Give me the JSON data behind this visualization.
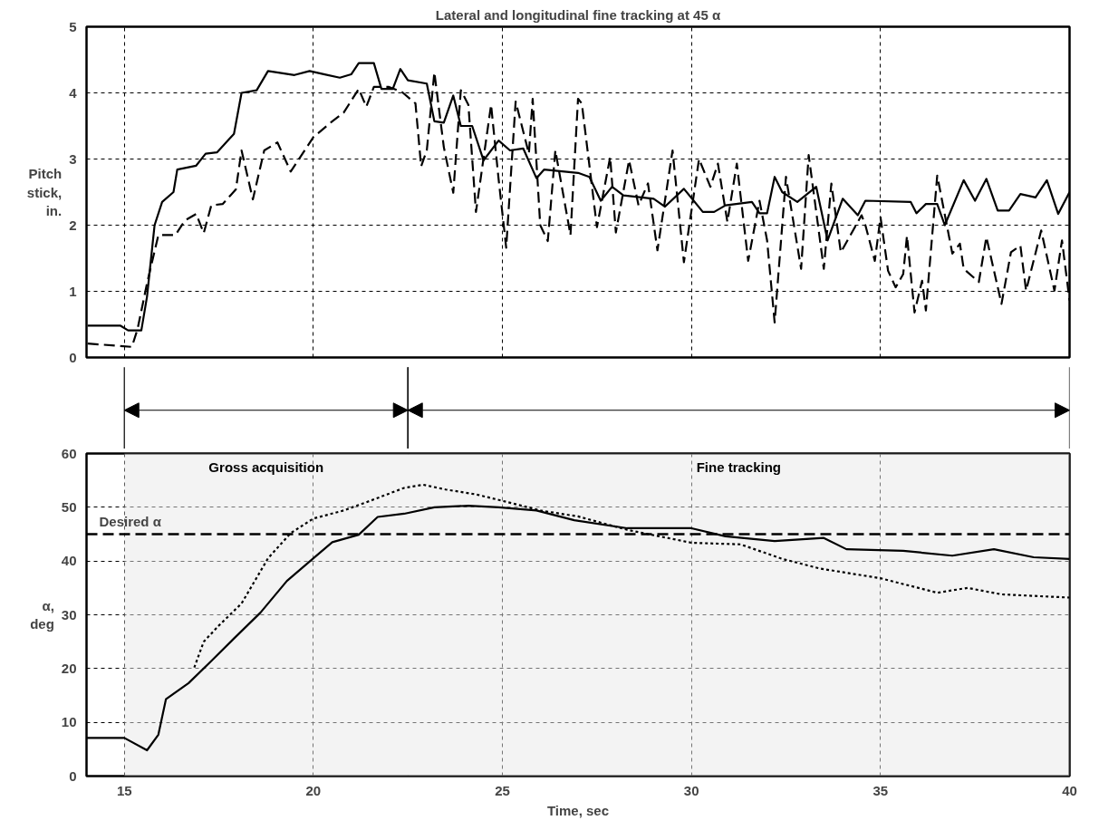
{
  "chart_data": [
    {
      "type": "line",
      "title": "Lateral and longitudinal fine tracking at 45 α",
      "ylabel": "Pitch stick, in.",
      "xlim": [
        14,
        40
      ],
      "ylim": [
        0,
        5
      ],
      "xticks": [
        15,
        20,
        25,
        30,
        35,
        40
      ],
      "yticks": [
        0,
        1,
        2,
        3,
        4,
        5
      ],
      "tick_labels": "y",
      "grid": true,
      "marker": "none",
      "series": [
        {
          "color": "#000000",
          "line_style": "solid",
          "x": [
            14.03,
            14.9,
            15.1,
            15.45,
            15.6,
            15.8,
            16.0,
            16.3,
            16.4,
            16.9,
            17.15,
            17.45,
            17.9,
            18.1,
            18.5,
            18.8,
            19.5,
            19.9,
            20.3,
            20.7,
            21.0,
            21.2,
            21.6,
            21.8,
            22.1,
            22.3,
            22.5,
            23.0,
            23.2,
            23.45,
            23.7,
            23.9,
            24.2,
            24.5,
            24.9,
            25.2,
            25.55,
            25.9,
            26.1,
            27.0,
            27.3,
            27.6,
            27.9,
            28.2,
            29.0,
            29.3,
            29.8,
            30.3,
            30.6,
            30.9,
            31.6,
            31.8,
            32.0,
            32.2,
            32.4,
            32.8,
            33.3,
            33.6,
            34.0,
            34.4,
            34.6,
            35.8,
            35.95,
            36.2,
            36.5,
            36.7,
            37.2,
            37.5,
            37.8,
            38.1,
            38.4,
            38.7,
            39.1,
            39.4,
            39.7,
            40.0
          ],
          "values": [
            0.48,
            0.48,
            0.41,
            0.41,
            0.92,
            2.0,
            2.35,
            2.5,
            2.84,
            2.9,
            3.08,
            3.1,
            3.38,
            4.0,
            4.04,
            4.33,
            4.27,
            4.33,
            4.28,
            4.23,
            4.28,
            4.45,
            4.45,
            4.06,
            4.06,
            4.36,
            4.19,
            4.14,
            3.57,
            3.55,
            3.96,
            3.5,
            3.5,
            2.98,
            3.28,
            3.13,
            3.16,
            2.71,
            2.84,
            2.79,
            2.73,
            2.37,
            2.58,
            2.45,
            2.4,
            2.28,
            2.55,
            2.2,
            2.2,
            2.3,
            2.35,
            2.18,
            2.18,
            2.73,
            2.5,
            2.35,
            2.58,
            1.77,
            2.4,
            2.15,
            2.37,
            2.35,
            2.18,
            2.32,
            2.32,
            2.0,
            2.68,
            2.37,
            2.7,
            2.22,
            2.22,
            2.47,
            2.42,
            2.68,
            2.17,
            2.5
          ]
        },
        {
          "color": "#000000",
          "line_style": "dashed",
          "x": [
            14.03,
            15.2,
            15.35,
            15.6,
            15.9,
            16.35,
            16.6,
            16.9,
            17.1,
            17.3,
            17.6,
            17.95,
            18.1,
            18.4,
            18.7,
            19.05,
            19.4,
            20.0,
            20.5,
            20.8,
            21.2,
            21.4,
            21.6,
            22.0,
            22.35,
            22.7,
            22.85,
            23.0,
            23.2,
            23.45,
            23.7,
            23.9,
            24.1,
            24.3,
            24.7,
            24.9,
            25.1,
            25.35,
            25.7,
            25.8,
            26.0,
            26.2,
            26.4,
            26.8,
            27.0,
            27.1,
            27.5,
            27.85,
            28.0,
            28.35,
            28.6,
            28.85,
            29.1,
            29.5,
            29.8,
            30.2,
            30.5,
            30.7,
            30.95,
            31.2,
            31.5,
            31.8,
            32.0,
            32.2,
            32.5,
            32.9,
            33.1,
            33.5,
            33.7,
            33.95,
            34.5,
            34.6,
            34.85,
            35.0,
            35.2,
            35.4,
            35.6,
            35.7,
            35.9,
            36.1,
            36.2,
            36.5,
            36.9,
            37.1,
            37.2,
            37.6,
            37.8,
            38.2,
            38.45,
            38.7,
            38.85,
            39.25,
            39.6,
            39.8,
            40.0
          ],
          "values": [
            0.21,
            0.16,
            0.43,
            1.12,
            1.85,
            1.85,
            2.07,
            2.17,
            1.88,
            2.3,
            2.32,
            2.54,
            3.13,
            2.39,
            3.13,
            3.25,
            2.81,
            3.33,
            3.57,
            3.7,
            4.06,
            3.79,
            4.09,
            4.09,
            4.01,
            3.84,
            2.89,
            3.13,
            4.31,
            3.18,
            2.49,
            4.04,
            3.82,
            2.2,
            3.82,
            2.69,
            1.66,
            3.87,
            3.08,
            3.91,
            2.0,
            1.76,
            3.13,
            1.85,
            3.91,
            3.84,
            1.97,
            3.03,
            1.89,
            2.98,
            2.3,
            2.63,
            1.62,
            3.13,
            1.44,
            3.0,
            2.58,
            2.93,
            2.05,
            2.93,
            1.46,
            2.37,
            1.77,
            0.53,
            2.73,
            1.34,
            3.06,
            1.34,
            2.63,
            1.59,
            2.15,
            2.0,
            1.46,
            2.12,
            1.31,
            1.06,
            1.26,
            1.84,
            0.68,
            1.16,
            0.71,
            2.75,
            1.57,
            1.72,
            1.34,
            1.14,
            1.82,
            0.81,
            1.59,
            1.69,
            1.01,
            1.92,
            1.01,
            1.77,
            0.86
          ]
        }
      ]
    },
    {
      "type": "line",
      "xlabel": "Time, sec",
      "ylabel": "α, deg",
      "xlim": [
        14,
        40
      ],
      "ylim": [
        0,
        60
      ],
      "xticks": [
        15,
        20,
        25,
        30,
        35,
        40
      ],
      "yticks": [
        0,
        10,
        20,
        30,
        40,
        50,
        60
      ],
      "grid": true,
      "marker": "none",
      "ref_lines": [
        {
          "axis": "y",
          "value": 45,
          "label": "Desired α",
          "color": "#000000",
          "line_style": "dashed"
        }
      ],
      "bands": [
        {
          "axis": "x",
          "from": 15,
          "to": 22.5,
          "label": "Gross acquisition"
        },
        {
          "axis": "x",
          "from": 22.5,
          "to": 40,
          "label": "Fine tracking"
        }
      ],
      "series": [
        {
          "color": "#000000",
          "line_style": "solid",
          "x": [
            14.0,
            15.0,
            15.6,
            15.9,
            16.1,
            16.7,
            17.3,
            17.9,
            18.6,
            19.3,
            20.0,
            20.5,
            21.2,
            21.7,
            22.4,
            23.2,
            24.1,
            24.9,
            25.9,
            26.9,
            28.3,
            30.0,
            30.9,
            32.2,
            33.5,
            34.1,
            35.6,
            36.9,
            38.0,
            39.05,
            40.0
          ],
          "values": [
            7.1,
            7.1,
            4.8,
            7.7,
            14.3,
            17.3,
            21.4,
            25.6,
            30.4,
            36.3,
            40.5,
            43.5,
            44.9,
            48.2,
            48.8,
            50.0,
            50.3,
            50.0,
            49.4,
            47.6,
            46.1,
            46.1,
            44.6,
            43.7,
            44.3,
            42.2,
            41.9,
            41.0,
            42.2,
            40.7,
            40.4
          ]
        },
        {
          "color": "#000000",
          "line_style": "dotted",
          "x": [
            16.85,
            17.1,
            17.5,
            18.1,
            18.8,
            19.4,
            20.0,
            20.8,
            21.5,
            22.4,
            22.9,
            23.5,
            24.3,
            25.0,
            26.0,
            27.0,
            28.3,
            30.0,
            31.3,
            32.4,
            33.4,
            35.0,
            36.5,
            37.3,
            38.2,
            40.0
          ],
          "values": [
            20.2,
            25.0,
            28.0,
            32.1,
            40.5,
            45.2,
            47.9,
            49.4,
            51.2,
            53.6,
            54.2,
            53.3,
            52.4,
            51.2,
            49.4,
            48.3,
            45.8,
            43.4,
            43.1,
            40.4,
            38.6,
            36.8,
            34.1,
            35.0,
            33.8,
            33.2
          ]
        }
      ]
    }
  ]
}
